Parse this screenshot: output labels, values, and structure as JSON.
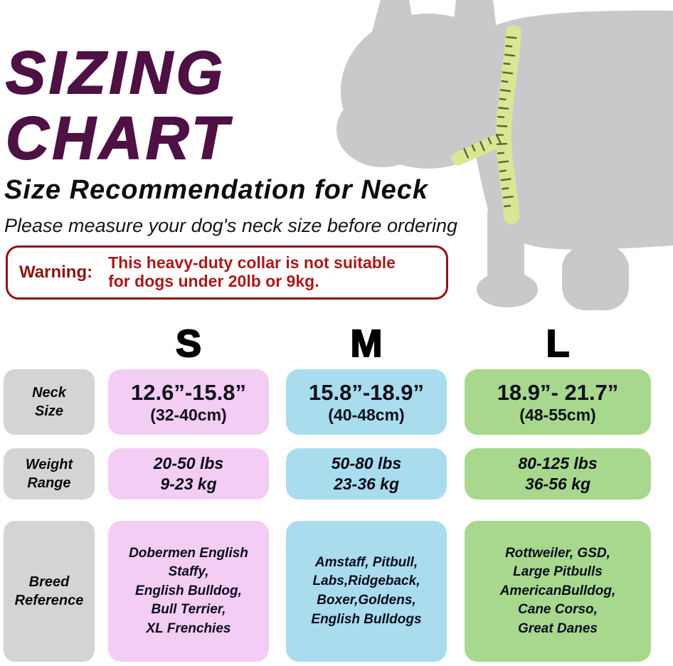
{
  "header": {
    "title_line1": "SIZING",
    "title_line2": "CHART",
    "subtitle": "Size Recommendation for Neck",
    "note": "Please measure your dog's neck size before ordering"
  },
  "warning": {
    "label": "Warning:",
    "text": "This heavy-duty collar is not suitable\nfor dogs under 20lb or 9kg."
  },
  "illustration": {
    "name": "dog-silhouette-with-measuring-tape",
    "dog_color": "#c9c9cb",
    "tape_color": "#d9e695",
    "tick_color": "#5d6530"
  },
  "colors": {
    "title": "#4e1144",
    "warning_border": "#8e1414",
    "warning_text": "#a81a1a",
    "row_header_bg": "#d4d4d4",
    "size_s_bg": "#f3cdf3",
    "size_m_bg": "#a9dcec",
    "size_l_bg": "#a7d88d"
  },
  "chart_data": {
    "type": "table",
    "title": "SIZING CHART",
    "subtitle": "Size Recommendation for Neck",
    "columns": [
      "S",
      "M",
      "L"
    ],
    "row_headers": [
      "Neck\nSize",
      "Weight\nRange",
      "Breed\nReference"
    ],
    "sizes": [
      {
        "label": "S",
        "neck_in": "12.6”-15.8”",
        "neck_cm": "(32-40cm)",
        "weight": "20-50 lbs\n9-23 kg",
        "breeds": "Dobermen English\nStaffy,\nEnglish Bulldog,\nBull Terrier,\nXL Frenchies"
      },
      {
        "label": "M",
        "neck_in": "15.8”-18.9”",
        "neck_cm": "(40-48cm)",
        "weight": "50-80 lbs\n23-36 kg",
        "breeds": "Amstaff, Pitbull,\nLabs,Ridgeback,\nBoxer,Goldens,\nEnglish Bulldogs"
      },
      {
        "label": "L",
        "neck_in": "18.9”- 21.7”",
        "neck_cm": "(48-55cm)",
        "weight": "80-125 lbs\n36-56 kg",
        "breeds": "Rottweiler, GSD,\nLarge Pitbulls\nAmericanBulldog,\nCane Corso,\nGreat Danes"
      }
    ]
  }
}
